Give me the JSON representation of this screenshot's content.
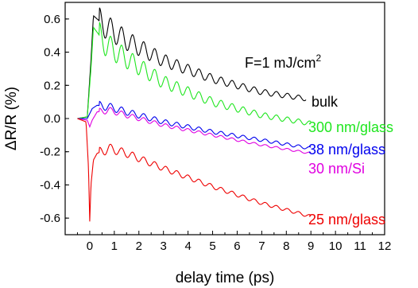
{
  "chart_data": {
    "type": "line",
    "title": "",
    "xlabel": "delay time (ps)",
    "ylabel": "ΔR/R (%)",
    "xlim": [
      -1,
      12
    ],
    "ylim": [
      -0.7,
      0.7
    ],
    "xticks": [
      0,
      1,
      2,
      3,
      4,
      5,
      6,
      7,
      8,
      9,
      10,
      11,
      12
    ],
    "yticks": [
      -0.6,
      -0.4,
      -0.2,
      0.0,
      0.2,
      0.4,
      0.6
    ],
    "xtick_labels": [
      "0",
      "1",
      "2",
      "3",
      "4",
      "5",
      "6",
      "7",
      "8",
      "9",
      "10",
      "11",
      "12"
    ],
    "ytick_labels": [
      "-0.6",
      "-0.4",
      "-0.2",
      "0.0",
      "0.2",
      "0.4",
      "0.6"
    ],
    "annotation": {
      "text": "F=1 mJ/cm",
      "superscript": "2"
    },
    "grid": false,
    "legend": "labels placed at the right end of each curve",
    "oscillation_period_ps": 0.45,
    "series": [
      {
        "name": "bulk",
        "color": "#000000",
        "x": [
          -0.5,
          -0.1,
          0.05,
          0.15,
          0.3,
          0.7,
          1.5,
          3,
          5,
          7,
          8.8
        ],
        "y": [
          0.0,
          0.01,
          0.35,
          0.62,
          0.6,
          0.55,
          0.47,
          0.35,
          0.24,
          0.16,
          0.12
        ],
        "oscillation_amplitude": [
          0.08,
          0.01
        ]
      },
      {
        "name": "300 nm/glass",
        "color": "#1fe61f",
        "x": [
          -0.5,
          -0.1,
          0.05,
          0.15,
          0.3,
          0.7,
          1.5,
          3,
          5,
          7,
          9
        ],
        "y": [
          0.0,
          0.01,
          0.3,
          0.55,
          0.52,
          0.44,
          0.36,
          0.22,
          0.1,
          0.02,
          -0.03
        ],
        "oscillation_amplitude": [
          0.08,
          0.01
        ]
      },
      {
        "name": "38 nm/glass",
        "color": "#0000ee",
        "x": [
          -0.5,
          -0.1,
          0.0,
          0.1,
          0.3,
          0.8,
          1.5,
          3,
          5,
          7,
          9
        ],
        "y": [
          0.0,
          0.0,
          0.03,
          0.06,
          0.08,
          0.07,
          0.04,
          -0.02,
          -0.08,
          -0.13,
          -0.18
        ],
        "oscillation_amplitude": [
          0.025,
          0.008
        ]
      },
      {
        "name": "30 nm/Si",
        "color": "#e000e0",
        "x": [
          -0.5,
          -0.1,
          0.0,
          0.1,
          0.3,
          0.8,
          1.5,
          3,
          5,
          7,
          9
        ],
        "y": [
          0.0,
          -0.01,
          -0.05,
          -0.01,
          0.04,
          0.05,
          0.02,
          -0.04,
          -0.1,
          -0.16,
          -0.21
        ],
        "oscillation_amplitude": [
          0.02,
          0.005
        ]
      },
      {
        "name": "25 nm/glass",
        "color": "#ee0000",
        "x": [
          -0.5,
          -0.15,
          -0.05,
          0.0,
          0.05,
          0.15,
          0.3,
          0.8,
          1.5,
          3,
          5,
          7,
          9
        ],
        "y": [
          0.0,
          -0.02,
          -0.3,
          -0.62,
          -0.4,
          -0.25,
          -0.21,
          -0.18,
          -0.21,
          -0.3,
          -0.41,
          -0.51,
          -0.59
        ],
        "oscillation_amplitude": [
          0.03,
          0.008
        ]
      }
    ]
  }
}
